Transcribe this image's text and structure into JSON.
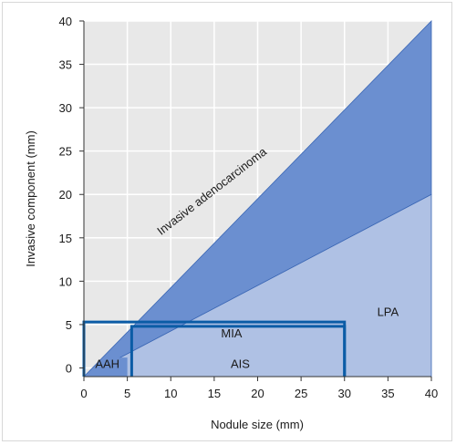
{
  "chart_data": {
    "type": "area",
    "xlabel": "Nodule size (mm)",
    "ylabel": "Invasive component (mm)",
    "xlim": [
      0,
      40
    ],
    "ylim": [
      -1,
      40
    ],
    "x_ticks": [
      0,
      5,
      10,
      15,
      20,
      25,
      30,
      35,
      40
    ],
    "y_ticks": [
      0,
      5,
      10,
      15,
      20,
      25,
      30,
      35,
      40
    ],
    "grid": true,
    "regions": [
      {
        "name": "Invasive adenocarcinoma",
        "polygon": [
          [
            0,
            -1
          ],
          [
            40,
            40
          ],
          [
            40,
            20
          ],
          [
            0,
            -1
          ]
        ]
      },
      {
        "name": "LPA",
        "polygon": [
          [
            0,
            -1
          ],
          [
            40,
            20
          ],
          [
            40,
            -1
          ]
        ]
      },
      {
        "name": "AAH",
        "polygon": [
          [
            0,
            -1
          ],
          [
            5,
            -1
          ],
          [
            5,
            1.2
          ],
          [
            2.5,
            1.2
          ]
        ]
      }
    ],
    "annotations": [
      {
        "text": "Invasive adenocarcinoma",
        "x": 15,
        "y": 20,
        "rotated": true
      },
      {
        "text": "LPA",
        "x": 35,
        "y": 6
      },
      {
        "text": "MIA",
        "x": 17,
        "y": 3.5
      },
      {
        "text": "AIS",
        "x": 18,
        "y": 0
      },
      {
        "text": "AAH",
        "x": 2.7,
        "y": 0
      }
    ],
    "boxes": [
      {
        "name": "MIA",
        "x": [
          0,
          30
        ],
        "y": [
          -1,
          5.3
        ]
      },
      {
        "name": "AIS",
        "x": [
          5.5,
          30
        ],
        "y": [
          -1,
          4.8
        ]
      }
    ],
    "colors": {
      "background": "#e8e8e8",
      "invasive": "#6b8fd0",
      "lpa": "#afc1e4",
      "aah": "#6b8fd0",
      "box": "#0b5ca6",
      "grid": "#ffffff"
    }
  }
}
